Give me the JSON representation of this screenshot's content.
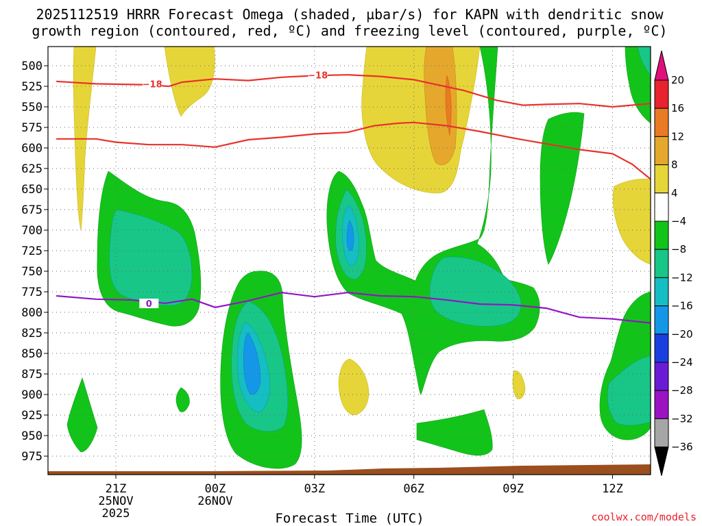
{
  "chart_data": {
    "type": "heatmap",
    "title_line1": "2025112519 HRRR Forecast Omega (shaded, µbar/s) for KAPN with dendritic snow",
    "title_line2": "growth region (contoured, red, ºC) and freezing level (contoured, purple, ºC)",
    "xlabel": "Forecast Time (UTC)",
    "credit": "coolwx.com/models",
    "x_range_hours": [
      19.2,
      37.3
    ],
    "pressure_levels": [
      500,
      525,
      550,
      575,
      600,
      625,
      650,
      675,
      700,
      725,
      750,
      775,
      800,
      825,
      850,
      875,
      900,
      925,
      950,
      975
    ],
    "x_ticks": [
      {
        "hour": 21,
        "label": "21Z",
        "sub1": "25NOV",
        "sub2": "2025"
      },
      {
        "hour": 24,
        "label": "00Z",
        "sub1": "26NOV",
        "sub2": ""
      },
      {
        "hour": 27,
        "label": "03Z",
        "sub1": "",
        "sub2": ""
      },
      {
        "hour": 30,
        "label": "06Z",
        "sub1": "",
        "sub2": ""
      },
      {
        "hour": 33,
        "label": "09Z",
        "sub1": "",
        "sub2": ""
      },
      {
        "hour": 36,
        "label": "12Z",
        "sub1": "",
        "sub2": ""
      }
    ],
    "colorbar": {
      "labels": [
        "20",
        "16",
        "12",
        "8",
        "4",
        "−4",
        "−8",
        "−12",
        "−16",
        "−20",
        "−24",
        "−28",
        "−32",
        "−36"
      ],
      "colors": [
        "#e8222e",
        "#ea7a23",
        "#e5a82c",
        "#e6d538",
        "#ffffff",
        "#12c41a",
        "#18c688",
        "#15bec2",
        "#1597e8",
        "#1a3fe0",
        "#6a1bd5",
        "#9a14c4",
        "#a6a6a6"
      ],
      "top_arrow_color": "#e0107a",
      "bottom_arrow_color": "#000000"
    },
    "contours": [
      {
        "name": "dgz-top",
        "label": "−18",
        "color": "#e8312b",
        "points": [
          [
            19.2,
            519
          ],
          [
            20.4,
            522
          ],
          [
            21.8,
            523
          ],
          [
            22.6,
            525
          ],
          [
            23.0,
            520
          ],
          [
            24.0,
            516
          ],
          [
            25.0,
            518
          ],
          [
            26.0,
            514
          ],
          [
            27.0,
            512
          ],
          [
            28.0,
            511
          ],
          [
            29.0,
            513
          ],
          [
            30.0,
            517
          ],
          [
            31.5,
            530
          ],
          [
            32.5,
            542
          ],
          [
            33.3,
            548
          ],
          [
            34.0,
            547
          ],
          [
            35.0,
            546
          ],
          [
            36.0,
            550
          ],
          [
            37.3,
            546
          ]
        ]
      },
      {
        "name": "dgz-bottom",
        "label": "",
        "color": "#e8312b",
        "points": [
          [
            19.2,
            589
          ],
          [
            20.4,
            589
          ],
          [
            21.0,
            593
          ],
          [
            22.0,
            596
          ],
          [
            23.0,
            596
          ],
          [
            24.0,
            599
          ],
          [
            25.0,
            590
          ],
          [
            26.0,
            587
          ],
          [
            27.0,
            583
          ],
          [
            28.0,
            581
          ],
          [
            28.8,
            573
          ],
          [
            29.5,
            570
          ],
          [
            30.0,
            569
          ],
          [
            31.0,
            573
          ],
          [
            32.0,
            580
          ],
          [
            33.0,
            588
          ],
          [
            34.0,
            595
          ],
          [
            35.0,
            602
          ],
          [
            36.0,
            607
          ],
          [
            36.6,
            620
          ],
          [
            37.3,
            638
          ]
        ]
      },
      {
        "name": "freezing-level",
        "label": "0",
        "color": "#9214c8",
        "points": [
          [
            19.2,
            780
          ],
          [
            20.4,
            784
          ],
          [
            21.5,
            785
          ],
          [
            22.5,
            789
          ],
          [
            23.3,
            784
          ],
          [
            24.0,
            794
          ],
          [
            25.0,
            786
          ],
          [
            26.0,
            776
          ],
          [
            27.0,
            781
          ],
          [
            28.0,
            776
          ],
          [
            29.0,
            780
          ],
          [
            30.0,
            781
          ],
          [
            31.0,
            785
          ],
          [
            32.0,
            790
          ],
          [
            33.0,
            791
          ],
          [
            34.0,
            795
          ],
          [
            35.0,
            806
          ],
          [
            36.0,
            808
          ],
          [
            37.3,
            813
          ]
        ]
      }
    ],
    "terrain_color": "#9b4e1e"
  }
}
